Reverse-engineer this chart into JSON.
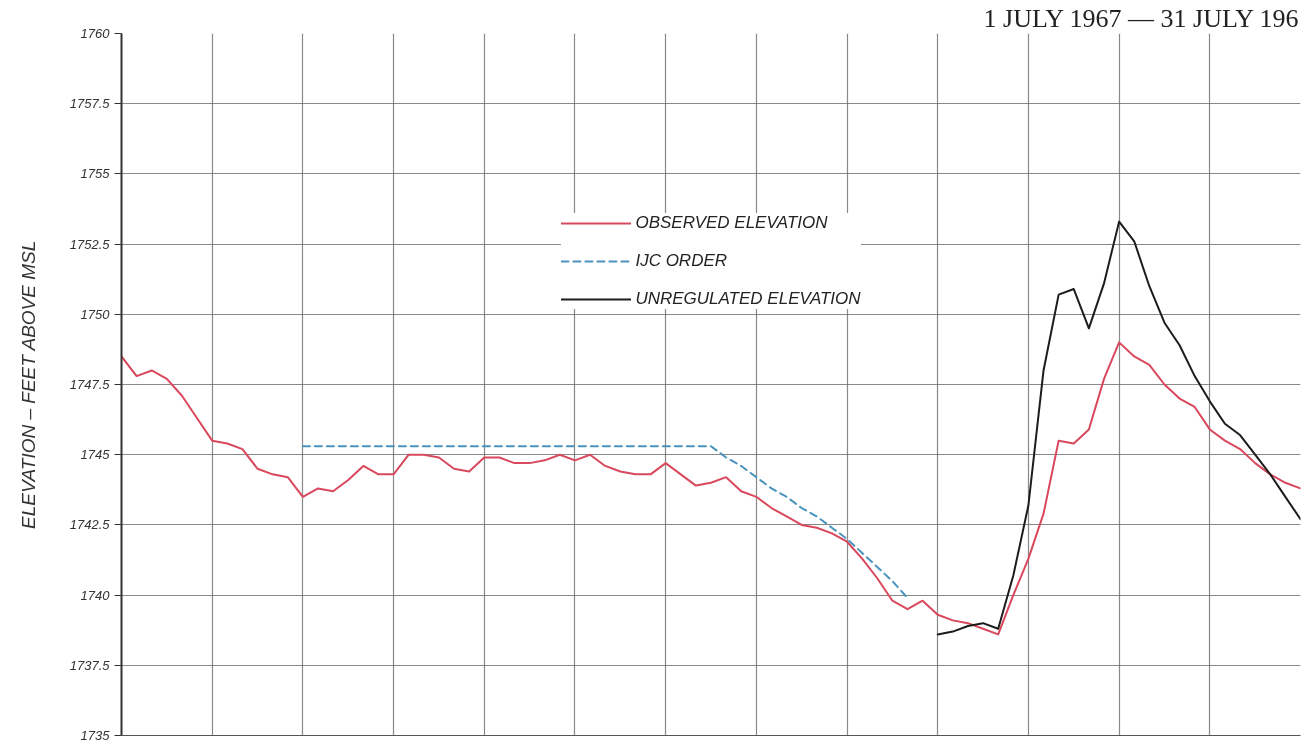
{
  "chart_data": {
    "type": "line",
    "title": "1 JULY 1967 — 31 JULY 196",
    "ylabel": "ELEVATION – FEET ABOVE MSL",
    "categories": [
      null,
      null,
      null,
      null,
      null,
      null,
      null,
      null,
      null,
      null,
      null,
      null,
      null,
      null,
      null,
      null,
      null,
      null,
      null,
      null,
      null,
      null,
      null,
      null,
      null,
      null,
      null,
      null,
      null,
      null,
      null,
      null,
      null,
      null,
      null,
      null,
      null,
      null,
      null,
      null,
      null,
      null,
      null,
      null,
      null,
      null,
      null,
      null,
      null,
      null,
      null,
      null,
      null,
      null,
      null,
      null,
      null,
      null,
      null,
      null,
      null,
      null,
      null,
      null,
      null,
      null,
      null,
      null,
      null,
      null,
      null,
      null,
      null,
      null,
      null,
      null,
      null,
      null,
      null
    ],
    "series": [
      {
        "name": "OBSERVED ELEVATION",
        "color": "#d9485c",
        "line_style": "solid",
        "values": [
          1748.5,
          1747.8,
          1748.0,
          1747.7,
          1747.1,
          1746.3,
          1745.5,
          1745.4,
          1745.2,
          1744.5,
          1744.3,
          1744.2,
          1743.5,
          1743.8,
          1743.7,
          1744.1,
          1744.6,
          1744.3,
          1744.3,
          1745.0,
          1745.0,
          1744.9,
          1744.5,
          1744.4,
          1744.9,
          1744.9,
          1744.7,
          1744.7,
          1744.8,
          1745.0,
          1744.8,
          1745.0,
          1744.6,
          1744.4,
          1744.3,
          1744.3,
          1744.7,
          1744.3,
          1743.9,
          1744.0,
          1744.2,
          1743.7,
          1743.5,
          1743.1,
          1742.8,
          1742.5,
          1742.4,
          1742.2,
          1741.9,
          1741.3,
          1740.6,
          1739.8,
          1739.5,
          1739.8,
          1739.3,
          1739.1,
          1739.0,
          1738.8,
          1738.6,
          1740.0,
          1741.3,
          1742.9,
          1745.5,
          1745.4,
          1745.9,
          1747.7,
          1749.0,
          1748.5,
          1748.2,
          1747.5,
          1747.0,
          1746.7,
          1745.9,
          1745.5,
          1745.2,
          1744.7,
          1744.3,
          1744.0,
          1743.8
        ]
      },
      {
        "name": "IJC ORDER",
        "color": "#4a93bd",
        "line_style": "dashed",
        "values": [
          null,
          null,
          null,
          null,
          null,
          null,
          null,
          null,
          null,
          null,
          null,
          null,
          1745.3,
          1745.3,
          1745.3,
          1745.3,
          1745.3,
          1745.3,
          1745.3,
          1745.3,
          1745.3,
          1745.3,
          1745.3,
          1745.3,
          1745.3,
          1745.3,
          1745.3,
          1745.3,
          1745.3,
          1745.3,
          1745.3,
          1745.3,
          1745.3,
          1745.3,
          1745.3,
          1745.3,
          1745.3,
          1745.3,
          1745.3,
          1745.3,
          1744.9,
          1744.6,
          1744.2,
          1743.8,
          1743.5,
          1743.1,
          1742.8,
          1742.4,
          1742.0,
          1741.5,
          1741.0,
          1740.5,
          1739.9,
          null,
          null,
          null,
          null,
          null,
          null,
          null,
          null,
          null,
          null,
          null,
          null,
          null,
          null,
          null,
          null,
          null,
          null,
          null,
          null,
          null,
          null,
          null,
          null,
          null,
          null
        ]
      },
      {
        "name": "UNREGULATED ELEVATION",
        "color": "#1c1c1c",
        "line_style": "solid",
        "values": [
          null,
          null,
          null,
          null,
          null,
          null,
          null,
          null,
          null,
          null,
          null,
          null,
          null,
          null,
          null,
          null,
          null,
          null,
          null,
          null,
          null,
          null,
          null,
          null,
          null,
          null,
          null,
          null,
          null,
          null,
          null,
          null,
          null,
          null,
          null,
          null,
          null,
          null,
          null,
          null,
          null,
          null,
          null,
          null,
          null,
          null,
          null,
          null,
          null,
          null,
          null,
          null,
          null,
          null,
          1738.6,
          1738.7,
          1738.9,
          1739.0,
          1738.8,
          1740.7,
          1743.2,
          1748.0,
          1750.7,
          1750.9,
          1749.5,
          1751.1,
          1753.3,
          1752.6,
          1751.0,
          1749.7,
          1748.9,
          1747.8,
          1746.9,
          1746.1,
          1745.7,
          1745.0,
          1744.3,
          1743.5,
          1742.7
        ]
      }
    ],
    "ylim": [
      1735,
      1760
    ],
    "yticks": [
      1735,
      1737.5,
      1740,
      1742.5,
      1745,
      1747.5,
      1750,
      1752.5,
      1755,
      1757.5,
      1760
    ],
    "grid": true,
    "legend": "top",
    "tick_labels": "y"
  }
}
